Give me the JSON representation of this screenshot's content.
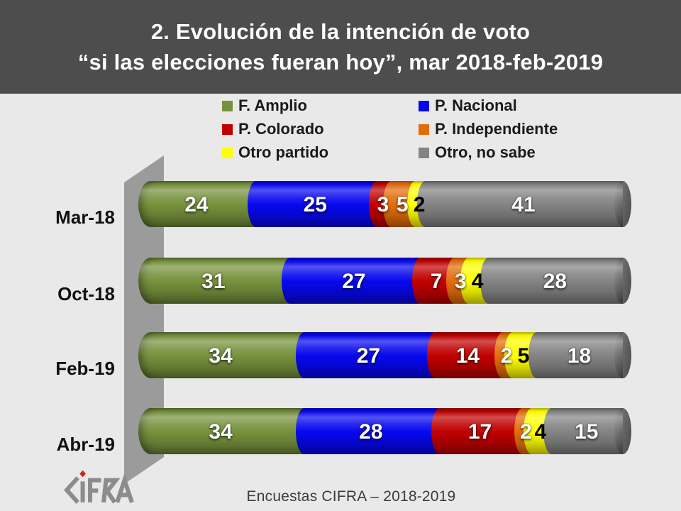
{
  "slide": {
    "title_line1": "2. Evolución de la intención de voto",
    "title_line2": "“si las elecciones fueran hoy”, mar 2018-feb-2019",
    "footer_text": "Encuestas CIFRA – 2018-2019",
    "logo_alt": "CIFRA"
  },
  "colors": {
    "banner_bg": "#4D4D4D",
    "banner_text": "#FFFFFF",
    "slide_bg": "#E9E9E9",
    "wall": "#9B9B9B",
    "legend_text": "#1A1A1A",
    "category_text": "#111111",
    "footer_text_color": "#3C3C3C",
    "logo_gray": "#8C8C8C",
    "logo_red": "#CC2222"
  },
  "chart_data": {
    "type": "bar",
    "variant": "stacked-horizontal-3d-cylinder",
    "unit": "percent",
    "xlim": [
      0,
      100
    ],
    "grid": false,
    "value_labels": true,
    "legend_position": "top",
    "categories": [
      "Mar-18",
      "Oct-18",
      "Feb-19",
      "Abr-19"
    ],
    "series": [
      {
        "name": "F. Amplio",
        "color": "#76923C",
        "label_color": "#FFFFFF",
        "values": [
          24,
          31,
          34,
          34
        ]
      },
      {
        "name": "P. Nacional",
        "color": "#0707EF",
        "label_color": "#FFFFFF",
        "values": [
          25,
          27,
          27,
          28
        ]
      },
      {
        "name": "P. Colorado",
        "color": "#C00000",
        "label_color": "#FFFFFF",
        "values": [
          3,
          7,
          14,
          17
        ]
      },
      {
        "name": "P. Independiente",
        "color": "#E36C0A",
        "label_color": "#FFFFFF",
        "values": [
          5,
          3,
          2,
          2
        ]
      },
      {
        "name": "Otro partido",
        "color": "#FFFF00",
        "label_color": "#000000",
        "values": [
          2,
          4,
          5,
          4
        ]
      },
      {
        "name": "Otro, no sabe",
        "color": "#838383",
        "label_color": "#FFFFFF",
        "values": [
          41,
          28,
          18,
          15
        ]
      }
    ]
  }
}
